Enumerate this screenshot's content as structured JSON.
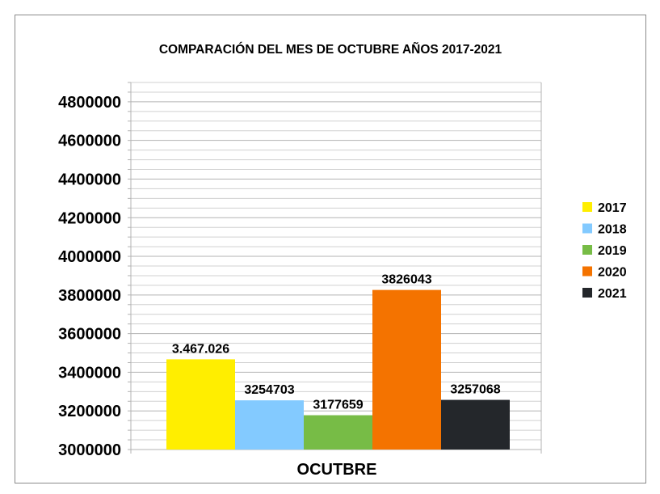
{
  "chart_data": {
    "type": "bar",
    "title": "COMPARACIÓN DEL MES DE OCTUBRE AÑOS 2017-2021",
    "xlabel": "",
    "ylabel": "",
    "categories": [
      "OCUTBRE"
    ],
    "ylim": [
      3000000,
      4900000
    ],
    "yticks": [
      3000000,
      3200000,
      3400000,
      3600000,
      3800000,
      4000000,
      4200000,
      4400000,
      4600000,
      4800000
    ],
    "ytick_labels": [
      "3000000",
      "3200000",
      "3400000",
      "3600000",
      "3800000",
      "4000000",
      "4200000",
      "4400000",
      "4600000",
      "4800000"
    ],
    "grid": true,
    "legend_position": "right",
    "series": [
      {
        "name": "2017",
        "values": [
          3467026
        ],
        "label": "3.467.026",
        "color": "#ffee00"
      },
      {
        "name": "2018",
        "values": [
          3254703
        ],
        "label": "3254703",
        "color": "#83caff"
      },
      {
        "name": "2019",
        "values": [
          3177659
        ],
        "label": "3177659",
        "color": "#77bc46"
      },
      {
        "name": "2020",
        "values": [
          3826043
        ],
        "label": "3826043",
        "color": "#f47300"
      },
      {
        "name": "2021",
        "values": [
          3257068
        ],
        "label": "3257068",
        "color": "#24272b"
      }
    ]
  }
}
